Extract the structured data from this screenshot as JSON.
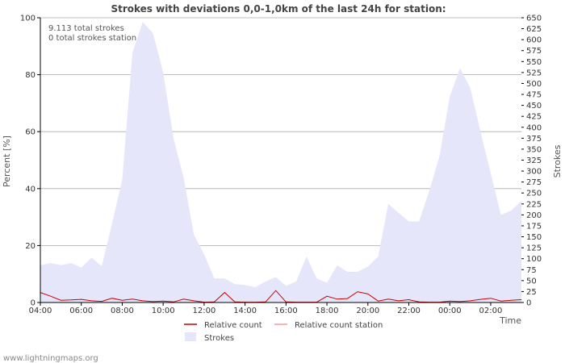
{
  "chart_data": {
    "type": "area",
    "title": "Strokes with deviations 0,0-1,0km of the last 24h for station:",
    "info_lines": [
      "9.113 total strokes",
      "0 total strokes station"
    ],
    "ylabel_left": "Percent   [%]",
    "ylabel_right": "Strokes",
    "xlabel": "Time",
    "ylim_left": [
      0,
      100
    ],
    "ylim_right": [
      0,
      650
    ],
    "x_range_hours": [
      0,
      23.5
    ],
    "left_ticks": [
      "0",
      "20",
      "40",
      "60",
      "80",
      "100"
    ],
    "left_tick_values": [
      0,
      20,
      40,
      60,
      80,
      100
    ],
    "right_ticks": [
      "0",
      "25",
      "50",
      "75",
      "100",
      "125",
      "150",
      "175",
      "200",
      "225",
      "250",
      "275",
      "300",
      "325",
      "350",
      "375",
      "400",
      "425",
      "450",
      "475",
      "500",
      "525",
      "550",
      "575",
      "600",
      "625",
      "650"
    ],
    "right_tick_values": [
      0,
      25,
      50,
      75,
      100,
      125,
      150,
      175,
      200,
      225,
      250,
      275,
      300,
      325,
      350,
      375,
      400,
      425,
      450,
      475,
      500,
      525,
      550,
      575,
      600,
      625,
      650
    ],
    "x_ticks": [
      "04:00",
      "06:00",
      "08:00",
      "10:00",
      "12:00",
      "14:00",
      "16:00",
      "18:00",
      "20:00",
      "22:00",
      "00:00",
      "02:00"
    ],
    "x_tick_hours": [
      0,
      2,
      4,
      6,
      8,
      10,
      12,
      14,
      16,
      18,
      20,
      22
    ],
    "colors": {
      "strokes_fill": "#e6e6fa",
      "relative_count": "#cc0000",
      "relative_count_station": "#ff9999",
      "grid": "#aaaaaa"
    },
    "series": [
      {
        "name": "Strokes",
        "axis": "right",
        "x": [
          0,
          0.5,
          1,
          1.5,
          2,
          2.5,
          3,
          3.5,
          4,
          4.5,
          5,
          5.5,
          6,
          6.5,
          7,
          7.5,
          8,
          8.5,
          9,
          9.5,
          10,
          10.5,
          11,
          11.5,
          12,
          12.5,
          13,
          13.5,
          14,
          14.5,
          15,
          15.5,
          16,
          16.5,
          17,
          17.5,
          18,
          18.5,
          19,
          19.5,
          20,
          20.5,
          21,
          21.5,
          22,
          22.5,
          23,
          23.5
        ],
        "values": [
          85,
          90,
          85,
          90,
          80,
          102,
          83,
          180,
          280,
          570,
          640,
          615,
          525,
          375,
          285,
          155,
          110,
          55,
          55,
          42,
          40,
          35,
          48,
          58,
          38,
          48,
          105,
          55,
          45,
          85,
          70,
          70,
          82,
          105,
          225,
          205,
          185,
          185,
          255,
          335,
          470,
          535,
          490,
          390,
          295,
          200,
          210,
          232
        ]
      },
      {
        "name": "Relative count",
        "axis": "left",
        "x": [
          0,
          0.5,
          1,
          1.5,
          2,
          2.5,
          3,
          3.5,
          4,
          4.5,
          5,
          5.5,
          6,
          6.5,
          7,
          7.5,
          8,
          8.5,
          9,
          9.5,
          10,
          10.5,
          11,
          11.5,
          12,
          12.5,
          13,
          13.5,
          14,
          14.5,
          15,
          15.5,
          16,
          16.5,
          17,
          17.5,
          18,
          18.5,
          19,
          19.5,
          20,
          20.5,
          21,
          21.5,
          22,
          22.5,
          23,
          23.5
        ],
        "values": [
          3.5,
          2.2,
          0.8,
          0.9,
          1.1,
          0.6,
          0.4,
          1.5,
          0.8,
          1.2,
          0.6,
          0.3,
          0.5,
          0.2,
          1.2,
          0.6,
          0.1,
          0.2,
          3.5,
          0.2,
          0.1,
          0.1,
          0.2,
          4.2,
          0.2,
          0.1,
          0.1,
          0.1,
          2.2,
          1.2,
          1.4,
          3.8,
          3.0,
          0.5,
          1.2,
          0.6,
          1.0,
          0.2,
          0.1,
          0.1,
          0.5,
          0.3,
          0.6,
          1.1,
          1.5,
          0.5,
          0.8,
          1.0
        ]
      },
      {
        "name": "Relative count station",
        "axis": "left",
        "x": [
          0,
          23.5
        ],
        "values": [
          0,
          0
        ]
      }
    ],
    "legend": [
      {
        "label": "Relative count",
        "kind": "line",
        "color": "#cc0000"
      },
      {
        "label": "Relative count station",
        "kind": "line",
        "color": "#ff9999"
      },
      {
        "label": "Strokes",
        "kind": "area",
        "color": "#e6e6fa"
      }
    ],
    "legend_position": "bottom"
  },
  "footer": {
    "credit": "www.lightningmaps.org"
  }
}
